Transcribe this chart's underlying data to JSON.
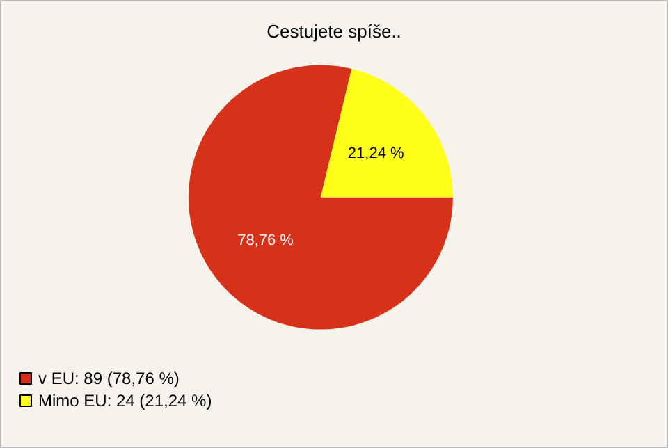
{
  "chart_data": {
    "type": "pie",
    "title": "Cestujete spíše..",
    "categories": [
      "v EU: 89 (78,76 %)",
      "Mimo EU: 24 (21,24 %)"
    ],
    "values": [
      78.76,
      21.24
    ],
    "value_labels": [
      "78,76 %",
      "21,24 %"
    ],
    "colors": [
      "#d8311a",
      "#ffff1a"
    ],
    "legend": "bottom left"
  }
}
